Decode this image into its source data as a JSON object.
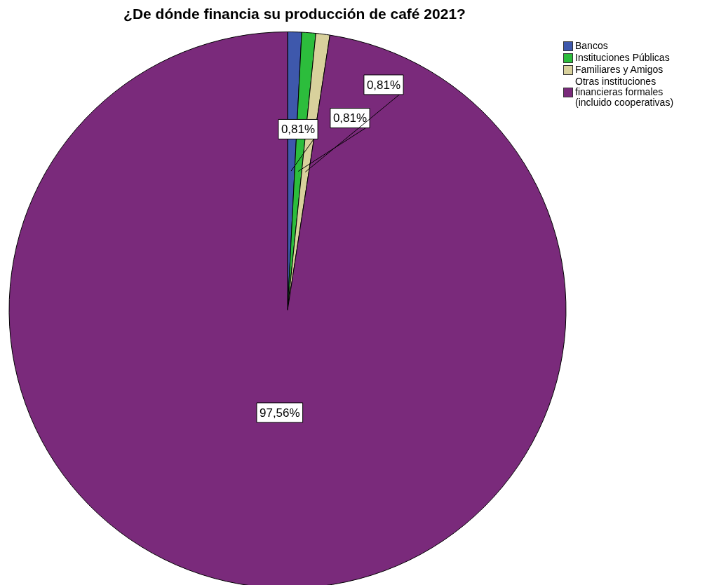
{
  "chart_data": {
    "type": "pie",
    "title": "¿De dónde financia su producción de café 2021?",
    "categories": [
      "Bancos",
      "Instituciones Públicas",
      "Familiares y Amigos",
      "Otras instituciones financieras formales (incluido cooperativas)"
    ],
    "values": [
      0.81,
      0.81,
      0.81,
      97.56
    ],
    "colors": [
      "#3e58ac",
      "#2cbd3c",
      "#d8d19c",
      "#7a2a7b"
    ],
    "value_labels": [
      "0,81%",
      "0,81%",
      "0,81%",
      "97,56%"
    ],
    "legend": "top right"
  }
}
